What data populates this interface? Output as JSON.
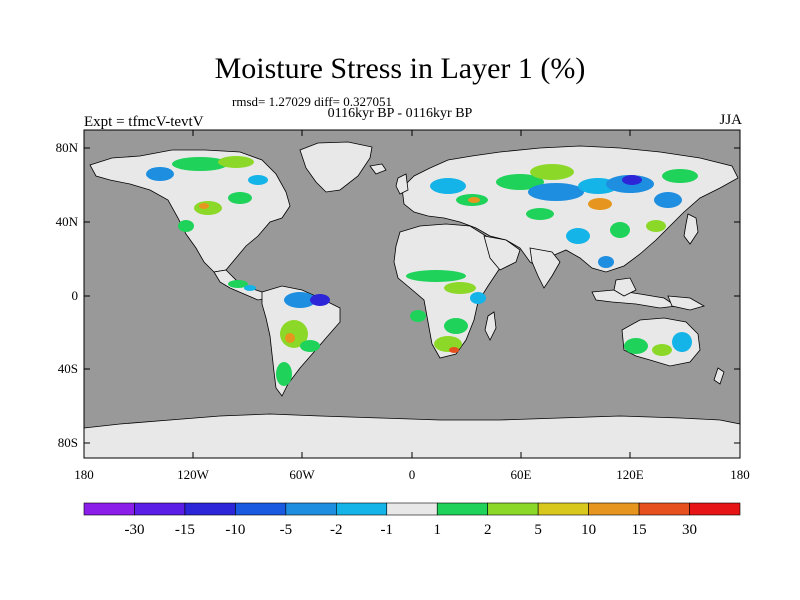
{
  "header": {
    "title": "Moisture Stress in Layer 1 (%)",
    "stats": "rmsd= 1.27029 diff= 0.327051",
    "period": "0116kyr BP - 0116kyr BP",
    "experiment": "Expt = tfmcV-tevtV",
    "season": "JJA"
  },
  "map": {
    "lat_ticks": [
      "80N",
      "40N",
      "0",
      "40S",
      "80S"
    ],
    "lon_ticks": [
      "180",
      "120W",
      "60W",
      "0",
      "60E",
      "120E",
      "180"
    ],
    "ocean_color": "#999999",
    "land_base_color": "#e8e8e8",
    "coast_color": "#000000"
  },
  "colorbar": {
    "colors": [
      "#8c1eea",
      "#5a1ee6",
      "#2c26d8",
      "#1a5ae0",
      "#1e8ee0",
      "#14b4e8",
      "#e8e8e8",
      "#1ed25a",
      "#8cd828",
      "#d8c81e",
      "#e6961e",
      "#e6501e",
      "#e61414"
    ],
    "labels": [
      "-30",
      "-15",
      "-10",
      "-5",
      "-2",
      "-1",
      "1",
      "2",
      "5",
      "10",
      "15",
      "30"
    ]
  }
}
